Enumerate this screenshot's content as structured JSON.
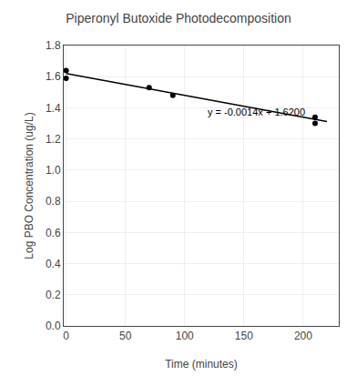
{
  "chart_data": {
    "type": "scatter",
    "title": "Piperonyl Butoxide Photodecomposition",
    "xlabel": "Time (minutes)",
    "ylabel": "Log PBO Concentration (ug/L)",
    "xlim": [
      -2,
      230
    ],
    "ylim": [
      0,
      1.8
    ],
    "xticks": [
      0,
      50,
      100,
      150,
      200
    ],
    "yticks": [
      {
        "value": 0,
        "label": "0.0"
      },
      0.2,
      0.4,
      0.6,
      0.8,
      {
        "value": 1.0,
        "label": "1.0"
      },
      1.2,
      1.4,
      1.6,
      1.8
    ],
    "grid": true,
    "series": [
      {
        "type": "line",
        "color": "#000000",
        "x": [
          0,
          220
        ],
        "values": [
          1.62,
          1.312
        ]
      },
      {
        "type": "scatter",
        "marker": "circle",
        "color": "#000000",
        "x": [
          0,
          0,
          70,
          90,
          210,
          210
        ],
        "values": [
          1.64,
          1.59,
          1.53,
          1.48,
          1.34,
          1.3
        ]
      }
    ],
    "annotations": [
      {
        "text": "y = -0.0014x + 1.6200",
        "x": 118,
        "y": 1.375,
        "color": "#000000"
      }
    ]
  }
}
